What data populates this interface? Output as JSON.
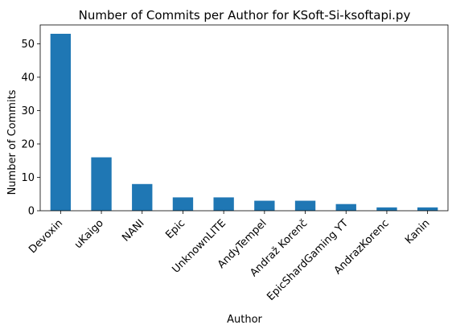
{
  "chart_data": {
    "type": "bar",
    "title": "Number of Commits per Author for KSoft-Si-ksoftapi.py",
    "xlabel": "Author",
    "ylabel": "Number of Commits",
    "categories": [
      "Devoxin",
      "uKaigo",
      "NANI",
      "Epic",
      "UnknownLITE",
      "AndyTempel",
      "Andraž Korenč",
      "EpicShardGaming YT",
      "AndrazKorenc",
      "Kanin"
    ],
    "values": [
      53,
      16,
      8,
      4,
      4,
      3,
      3,
      2,
      1,
      1
    ],
    "ylim": [
      0,
      55.65
    ],
    "yticks": [
      0,
      10,
      20,
      30,
      40,
      50
    ],
    "grid": false,
    "legend": "none",
    "bar_color": "#1f77b4"
  }
}
